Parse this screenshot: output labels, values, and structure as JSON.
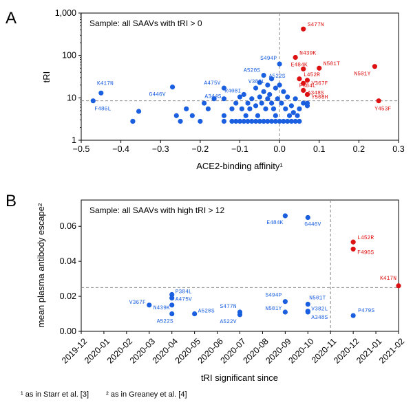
{
  "panel_letters": [
    "A",
    "B"
  ],
  "footnotes": [
    "¹ as in Starr et al. [3]",
    "² as in Greaney et al. [4]"
  ],
  "colors": {
    "blue": "#1a5fe0",
    "red": "#dd1111",
    "ref_line": "#888888"
  },
  "chart_data": [
    {
      "type": "scatter",
      "id": "A",
      "annotation": "Sample: all SAAVs with tRI > 0",
      "xlabel": "ACE2-binding affinity¹",
      "ylabel": "tRI",
      "xlim": [
        -0.5,
        0.3
      ],
      "ylim": [
        1,
        1000
      ],
      "yscale": "log",
      "xticks": [
        -0.5,
        -0.4,
        -0.3,
        -0.2,
        -0.1,
        0.0,
        0.1,
        0.2,
        0.3
      ],
      "xtick_labels": [
        "−0.5",
        "−0.4",
        "−0.3",
        "−0.2",
        "−0.1",
        "0.0",
        "0.1",
        "0.2",
        "0.3"
      ],
      "yticks": [
        1,
        10,
        100,
        1000
      ],
      "ytick_labels": [
        "1",
        "10",
        "100",
        "1,000"
      ],
      "ref_lines": {
        "x": 0.0,
        "y": 8.5
      },
      "points": [
        {
          "x": -0.47,
          "y": 8.5,
          "label": "F486L",
          "c": "blue",
          "dx": 2,
          "dy": 14,
          "anchor": "start"
        },
        {
          "x": -0.45,
          "y": 13,
          "label": "K417N",
          "c": "blue",
          "dx": -6,
          "dy": -12,
          "anchor": "start"
        },
        {
          "x": -0.37,
          "y": 2.8,
          "c": "blue"
        },
        {
          "x": -0.355,
          "y": 4.8,
          "c": "blue"
        },
        {
          "x": -0.27,
          "y": 18,
          "label": "G446V",
          "c": "blue",
          "dx": -10,
          "dy": 13,
          "anchor": "end"
        },
        {
          "x": -0.26,
          "y": 3.8,
          "c": "blue"
        },
        {
          "x": -0.25,
          "y": 2.8,
          "c": "blue"
        },
        {
          "x": -0.235,
          "y": 5.5,
          "c": "blue"
        },
        {
          "x": -0.22,
          "y": 3.8,
          "c": "blue"
        },
        {
          "x": -0.2,
          "y": 2.8,
          "c": "blue"
        },
        {
          "x": -0.19,
          "y": 7.5,
          "c": "blue"
        },
        {
          "x": -0.18,
          "y": 5.5,
          "c": "blue"
        },
        {
          "x": -0.165,
          "y": 9.5,
          "c": "blue"
        },
        {
          "x": -0.14,
          "y": 17,
          "label": "A475V",
          "c": "blue",
          "dx": -5,
          "dy": -5,
          "anchor": "end"
        },
        {
          "x": -0.14,
          "y": 9.5,
          "label": "A344S",
          "c": "blue",
          "dx": -4,
          "dy": -1,
          "anchor": "end"
        },
        {
          "x": -0.14,
          "y": 3.8,
          "c": "blue"
        },
        {
          "x": -0.14,
          "y": 2.8,
          "c": "blue"
        },
        {
          "x": -0.12,
          "y": 5.5,
          "c": "blue"
        },
        {
          "x": -0.11,
          "y": 7.5,
          "c": "blue"
        },
        {
          "x": -0.1,
          "y": 10.5,
          "c": "blue"
        },
        {
          "x": -0.095,
          "y": 5.5,
          "c": "blue"
        },
        {
          "x": -0.09,
          "y": 12,
          "label": "R408I",
          "c": "blue",
          "dx": -4,
          "dy": -3,
          "anchor": "end"
        },
        {
          "x": -0.085,
          "y": 3.8,
          "c": "blue"
        },
        {
          "x": -0.08,
          "y": 7.5,
          "c": "blue"
        },
        {
          "x": -0.075,
          "y": 5.5,
          "c": "blue"
        },
        {
          "x": -0.07,
          "y": 9.5,
          "c": "blue"
        },
        {
          "x": -0.06,
          "y": 17,
          "c": "blue"
        },
        {
          "x": -0.06,
          "y": 6.5,
          "c": "blue"
        },
        {
          "x": -0.055,
          "y": 3.8,
          "c": "blue"
        },
        {
          "x": -0.05,
          "y": 23,
          "c": "blue"
        },
        {
          "x": -0.05,
          "y": 10.5,
          "c": "blue"
        },
        {
          "x": -0.045,
          "y": 7.5,
          "c": "blue"
        },
        {
          "x": -0.04,
          "y": 34,
          "label": "A520S",
          "c": "blue",
          "dx": -5,
          "dy": -5,
          "anchor": "end"
        },
        {
          "x": -0.04,
          "y": 14,
          "c": "blue"
        },
        {
          "x": -0.035,
          "y": 5.5,
          "c": "blue"
        },
        {
          "x": -0.03,
          "y": 9.5,
          "c": "blue"
        },
        {
          "x": -0.03,
          "y": 20,
          "label": "V382L",
          "c": "blue",
          "dx": -4,
          "dy": -3,
          "anchor": "end"
        },
        {
          "x": -0.025,
          "y": 12,
          "c": "blue"
        },
        {
          "x": -0.02,
          "y": 28,
          "label": "A522S",
          "c": "blue",
          "dx": -4,
          "dy": -2,
          "anchor": "start"
        },
        {
          "x": -0.02,
          "y": 7.5,
          "c": "blue"
        },
        {
          "x": -0.015,
          "y": 5.5,
          "c": "blue"
        },
        {
          "x": -0.01,
          "y": 17,
          "c": "blue"
        },
        {
          "x": -0.01,
          "y": 3.8,
          "c": "blue"
        },
        {
          "x": -0.005,
          "y": 9.5,
          "c": "blue"
        },
        {
          "x": 0.0,
          "y": 63,
          "label": "S494P",
          "c": "blue",
          "dx": -4,
          "dy": -6,
          "anchor": "end"
        },
        {
          "x": 0.0,
          "y": 20,
          "c": "blue"
        },
        {
          "x": 0.005,
          "y": 7.5,
          "c": "blue"
        },
        {
          "x": 0.01,
          "y": 14,
          "c": "blue"
        },
        {
          "x": 0.015,
          "y": 5.5,
          "c": "blue"
        },
        {
          "x": 0.02,
          "y": 10.5,
          "c": "blue"
        },
        {
          "x": 0.025,
          "y": 3.8,
          "c": "blue"
        },
        {
          "x": 0.03,
          "y": 6.5,
          "c": "blue"
        },
        {
          "x": 0.035,
          "y": 4.5,
          "c": "blue"
        },
        {
          "x": 0.04,
          "y": 9.5,
          "c": "blue"
        },
        {
          "x": 0.045,
          "y": 3.8,
          "c": "blue"
        },
        {
          "x": 0.05,
          "y": 5.5,
          "c": "blue"
        },
        {
          "x": 0.06,
          "y": 7.5,
          "c": "blue"
        },
        {
          "x": 0.07,
          "y": 6.5,
          "c": "blue"
        },
        {
          "x": 0.07,
          "y": 7.5,
          "c": "blue"
        },
        {
          "x": 0.06,
          "y": 420,
          "label": "S477N",
          "c": "red",
          "dx": 6,
          "dy": -4,
          "anchor": "start"
        },
        {
          "x": 0.04,
          "y": 90,
          "label": "N439K",
          "c": "red",
          "dx": 6,
          "dy": -4,
          "anchor": "start"
        },
        {
          "x": 0.1,
          "y": 50,
          "label": "N501T",
          "c": "red",
          "dx": 6,
          "dy": -4,
          "anchor": "start"
        },
        {
          "x": 0.06,
          "y": 48,
          "label": "E484K",
          "c": "red",
          "dx": 6,
          "dy": -4,
          "anchor": "end"
        },
        {
          "x": 0.07,
          "y": 26,
          "label": "V367F",
          "c": "red",
          "dx": 6,
          "dy": 7,
          "anchor": "start"
        },
        {
          "x": 0.05,
          "y": 28,
          "label": "L452R",
          "c": "red",
          "dx": 6,
          "dy": -4,
          "anchor": "start"
        },
        {
          "x": 0.06,
          "y": 22,
          "label": "P384L",
          "c": "red",
          "dx": -6,
          "dy": 6,
          "anchor": "start"
        },
        {
          "x": 0.06,
          "y": 15,
          "label": "A348S",
          "c": "red",
          "dx": 6,
          "dy": 6,
          "anchor": "start"
        },
        {
          "x": 0.07,
          "y": 12,
          "label": "Y508H",
          "c": "red",
          "dx": 6,
          "dy": 6,
          "anchor": "start"
        },
        {
          "x": 0.24,
          "y": 55,
          "label": "N501Y",
          "c": "red",
          "dx": -6,
          "dy": 13,
          "anchor": "end"
        },
        {
          "x": 0.25,
          "y": 8.5,
          "label": "Y453F",
          "c": "red",
          "dx": -6,
          "dy": 14,
          "anchor": "start"
        },
        {
          "x": -0.37,
          "y": 2.8,
          "c": "blue"
        },
        {
          "x": -0.12,
          "y": 2.8,
          "c": "blue"
        },
        {
          "x": -0.11,
          "y": 2.8,
          "c": "blue"
        },
        {
          "x": -0.1,
          "y": 2.8,
          "c": "blue"
        },
        {
          "x": -0.09,
          "y": 2.8,
          "c": "blue"
        },
        {
          "x": -0.08,
          "y": 2.8,
          "c": "blue"
        },
        {
          "x": -0.07,
          "y": 2.8,
          "c": "blue"
        },
        {
          "x": -0.06,
          "y": 2.8,
          "c": "blue"
        },
        {
          "x": -0.05,
          "y": 2.8,
          "c": "blue"
        },
        {
          "x": -0.04,
          "y": 2.8,
          "c": "blue"
        },
        {
          "x": -0.03,
          "y": 2.8,
          "c": "blue"
        },
        {
          "x": -0.02,
          "y": 2.8,
          "c": "blue"
        },
        {
          "x": -0.01,
          "y": 2.8,
          "c": "blue"
        },
        {
          "x": 0.0,
          "y": 2.8,
          "c": "blue"
        },
        {
          "x": 0.01,
          "y": 2.8,
          "c": "blue"
        },
        {
          "x": 0.02,
          "y": 2.8,
          "c": "blue"
        },
        {
          "x": 0.03,
          "y": 2.8,
          "c": "blue"
        },
        {
          "x": 0.04,
          "y": 2.8,
          "c": "blue"
        },
        {
          "x": 0.05,
          "y": 2.8,
          "c": "blue"
        }
      ]
    },
    {
      "type": "scatter",
      "id": "B",
      "annotation": "Sample: all SAAVs with high tRI > 12",
      "xlabel": "tRI significant since",
      "ylabel": "mean plasma antibody escape²",
      "xlim": [
        0,
        14
      ],
      "ylim": [
        0.0,
        0.075
      ],
      "xticks": [
        0,
        1,
        2,
        3,
        4,
        5,
        6,
        7,
        8,
        9,
        10,
        11,
        12,
        13,
        14
      ],
      "xtick_labels": [
        "2019-12",
        "2020-01",
        "2020-02",
        "2020-03",
        "2020-04",
        "2020-05",
        "2020-06",
        "2020-07",
        "2020-08",
        "2020-09",
        "2020-10",
        "2020-11",
        "2020-12",
        "2021-01",
        "2021-02"
      ],
      "yticks": [
        0.0,
        0.02,
        0.04,
        0.06
      ],
      "ytick_labels": [
        "0.00",
        "0.02",
        "0.04",
        "0.06"
      ],
      "ref_lines": {
        "x": 11,
        "y": 0.025
      },
      "points": [
        {
          "x": 9,
          "y": 0.066,
          "label": "E484K",
          "c": "blue",
          "dx": -3,
          "dy": 12,
          "anchor": "end"
        },
        {
          "x": 10,
          "y": 0.065,
          "label": "G446V",
          "c": "blue",
          "dx": -5,
          "dy": 12,
          "anchor": "start"
        },
        {
          "x": 3,
          "y": 0.015,
          "label": "V367F",
          "c": "blue",
          "dx": -5,
          "dy": -2,
          "anchor": "end"
        },
        {
          "x": 4,
          "y": 0.021,
          "label": "P384L",
          "c": "blue",
          "dx": 5,
          "dy": -2,
          "anchor": "start"
        },
        {
          "x": 4,
          "y": 0.019,
          "label": "A475V",
          "c": "blue",
          "dx": 5,
          "dy": 4,
          "anchor": "start"
        },
        {
          "x": 4,
          "y": 0.015,
          "label": "N439K",
          "c": "blue",
          "dx": -3,
          "dy": 6,
          "anchor": "end"
        },
        {
          "x": 4,
          "y": 0.01,
          "label": "A522S",
          "c": "blue",
          "dx": 2,
          "dy": 13,
          "anchor": "end"
        },
        {
          "x": 5,
          "y": 0.01,
          "label": "A520S",
          "c": "blue",
          "dx": 5,
          "dy": -2,
          "anchor": "start"
        },
        {
          "x": 7,
          "y": 0.011,
          "label": "S477N",
          "c": "blue",
          "dx": -5,
          "dy": -6,
          "anchor": "end"
        },
        {
          "x": 7,
          "y": 0.0095,
          "label": "A522V",
          "c": "blue",
          "dx": -5,
          "dy": 12,
          "anchor": "end"
        },
        {
          "x": 9,
          "y": 0.017,
          "label": "S494P",
          "c": "blue",
          "dx": -5,
          "dy": -7,
          "anchor": "end"
        },
        {
          "x": 9,
          "y": 0.011,
          "label": "N501Y",
          "c": "blue",
          "dx": -5,
          "dy": -3,
          "anchor": "end"
        },
        {
          "x": 10,
          "y": 0.0155,
          "label": "N501T",
          "c": "blue",
          "dx": 2,
          "dy": -7,
          "anchor": "start"
        },
        {
          "x": 10,
          "y": 0.0115,
          "label": "V382L",
          "c": "blue",
          "dx": 5,
          "dy": -1,
          "anchor": "start"
        },
        {
          "x": 10,
          "y": 0.011,
          "label": "A348S",
          "c": "blue",
          "dx": 5,
          "dy": 10,
          "anchor": "start"
        },
        {
          "x": 12,
          "y": 0.009,
          "label": "P479S",
          "c": "blue",
          "dx": 7,
          "dy": -5,
          "anchor": "start"
        },
        {
          "x": 12,
          "y": 0.051,
          "label": "L452R",
          "c": "red",
          "dx": 6,
          "dy": -4,
          "anchor": "start"
        },
        {
          "x": 12,
          "y": 0.047,
          "label": "F490S",
          "c": "red",
          "dx": 6,
          "dy": 7,
          "anchor": "start"
        },
        {
          "x": 14,
          "y": 0.026,
          "label": "K417N",
          "c": "red",
          "dx": -3,
          "dy": -9,
          "anchor": "end"
        }
      ]
    }
  ]
}
